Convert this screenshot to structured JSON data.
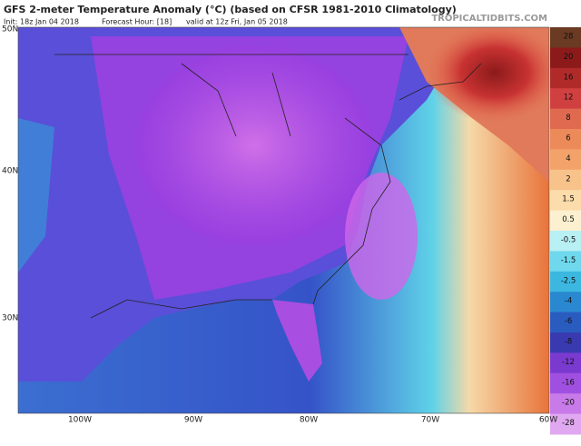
{
  "title": "GFS 2-meter Temperature Anomaly (°C) (based on CFSR 1981-2010 Climatology)",
  "subtitle": [
    "Init: 18z Jan 04 2018",
    "Forecast Hour: [18]",
    "valid at 12z Fri, Jan 05 2018"
  ],
  "watermark": "TROPICALTIDBITS.COM",
  "latitude_labels": [
    "50N",
    "40N",
    "30N"
  ],
  "longitude_labels": [
    "100W",
    "90W",
    "80W",
    "70W",
    "60W"
  ],
  "colorbar": {
    "ticks": [
      28,
      20,
      16,
      12,
      8,
      6,
      4,
      2,
      1.5,
      0.5,
      -0.5,
      -1.5,
      -2.5,
      -4,
      -6,
      -8,
      -12,
      -16,
      -20,
      -28
    ],
    "colors": [
      "#6b3a22",
      "#8c1a1a",
      "#b02a2a",
      "#d04040",
      "#e06a50",
      "#ec8a5a",
      "#f3a36a",
      "#f7c38a",
      "#fbdcaa",
      "#fdf0d0",
      "#b8f0f4",
      "#6fd8ec",
      "#3cb8e0",
      "#2a88d0",
      "#2a5cc0",
      "#3a3ab0",
      "#7a3ad0",
      "#a050e0",
      "#c87ae8",
      "#e0a8f0"
    ]
  }
}
